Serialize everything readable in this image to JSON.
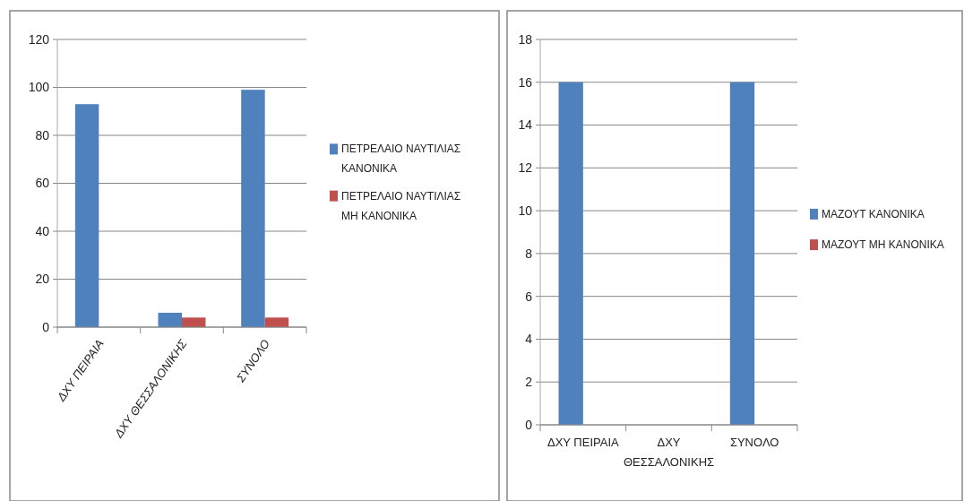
{
  "chart_data": [
    {
      "type": "bar",
      "categories": [
        "ΔΧΥ ΠΕΙΡΑΙΑ",
        "ΔΧΥ ΘΕΣΣΑΛΟΝΙΚΗΣ",
        "ΣΥΝΟΛΟ"
      ],
      "series": [
        {
          "name": "ΠΕΤΡΕΛΑΙΟ ΝΑΥΤΙΛΙΑΣ ΚΑΝΟΝΙΚΑ",
          "color": "#4f81bd",
          "values": [
            93,
            6,
            99
          ]
        },
        {
          "name": "ΠΕΤΡΕΛΑΙΟ ΝΑΥΤΙΛΙΑΣ ΜΗ ΚΑΝΟΝΙΚΑ",
          "color": "#c0504d",
          "values": [
            0,
            4,
            4
          ]
        }
      ],
      "ylim": [
        0,
        120
      ],
      "yticks": [
        0,
        20,
        40,
        60,
        80,
        100,
        120
      ],
      "grid": "y",
      "legend": "right"
    },
    {
      "type": "bar",
      "categories": [
        "ΔΧΥ ΠΕΙΡΑΙΑ",
        "ΔΧΥ ΘΕΣΣΑΛΟΝΙΚΗΣ",
        "ΣΥΝΟΛΟ"
      ],
      "series": [
        {
          "name": "ΜΑΖΟΥΤ ΚΑΝΟΝΙΚΑ",
          "color": "#4f81bd",
          "values": [
            16,
            0,
            16
          ]
        },
        {
          "name": "ΜΑΖΟΥΤ ΜΗ ΚΑΝΟΝΙΚΑ",
          "color": "#c0504d",
          "values": [
            0,
            0,
            0
          ]
        }
      ],
      "ylim": [
        0,
        18
      ],
      "yticks": [
        0,
        2,
        4,
        6,
        8,
        10,
        12,
        14,
        16,
        18
      ],
      "grid": "y",
      "legend": "right"
    }
  ]
}
